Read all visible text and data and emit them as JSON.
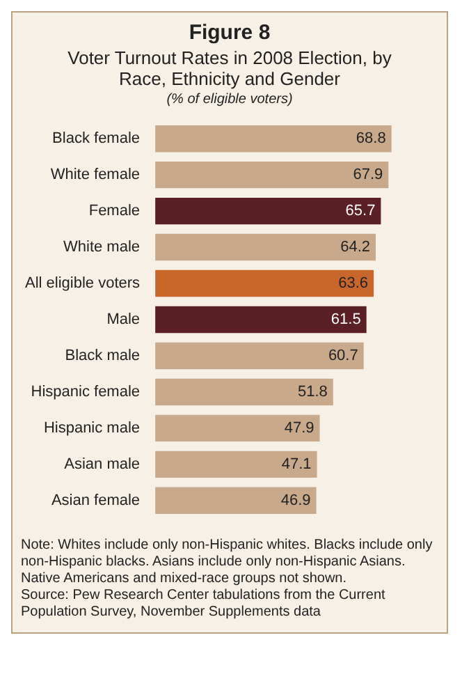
{
  "chart_data": {
    "type": "bar",
    "orientation": "horizontal",
    "title": "Figure 8",
    "subtitle": "Voter Turnout Rates in 2008 Election, by Race, Ethnicity and Gender",
    "xlabel": "(% of eligible voters)",
    "categories": [
      "Black female",
      "White female",
      "Female",
      "White male",
      "All eligible voters",
      "Male",
      "Black male",
      "Hispanic female",
      "Hispanic male",
      "Asian male",
      "Asian female"
    ],
    "values": [
      68.8,
      67.9,
      65.7,
      64.2,
      63.6,
      61.5,
      60.7,
      51.8,
      47.9,
      47.1,
      46.9
    ],
    "colors": [
      "#c9a98b",
      "#c9a98b",
      "#5b1f26",
      "#c9a98b",
      "#c8662c",
      "#5b1f26",
      "#c9a98b",
      "#c9a98b",
      "#c9a98b",
      "#c9a98b",
      "#c9a98b"
    ],
    "data_labels": true,
    "annotations": [
      "Note: Whites include only non-Hispanic whites.  Blacks include only non-Hispanic blacks. Asians include only non-Hispanic Asians. Native Americans and mixed-race groups not shown.",
      "Source: Pew Research Center tabulations from the Current Population Survey, November Supplements data"
    ]
  }
}
